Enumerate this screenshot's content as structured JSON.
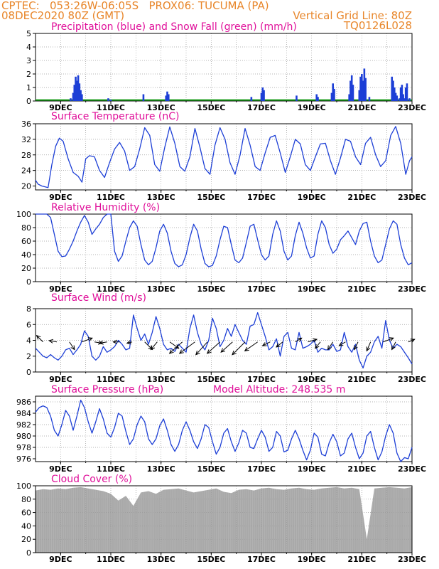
{
  "header": {
    "line1_left": "CPTEC:   053:26W-06:05S   PROX06: TUCUMA (PA)",
    "line2_left": "08DEC2020 80Z (GMT)",
    "line2_right": "Vertical Grid Line: 80Z",
    "line3_right": "TQ0126L028"
  },
  "colors": {
    "header": "#e8862a",
    "title": "#e0109a",
    "series": "#1d3fd6",
    "snow": "#1a9e1a",
    "cloud": "#a9a9a9",
    "grid": "#9a9a9a"
  },
  "x_axis": {
    "start_day": 8,
    "end_day": 23,
    "tick_labels": [
      "9DEC",
      "11DEC",
      "13DEC",
      "15DEC",
      "17DEC",
      "19DEC",
      "21DEC",
      "23DEC"
    ]
  },
  "chart_data": [
    {
      "type": "bar",
      "title": "Precipitation (blue) and Snow Fall (green) (mm/h)",
      "ylim": [
        0,
        5
      ],
      "yticks": [
        "0",
        "1",
        "2",
        "3",
        "4",
        "5"
      ],
      "grid": true,
      "series": [
        {
          "name": "Precipitation",
          "color": "#1d3fd6",
          "points": [
            [
              9.4,
              0.2
            ],
            [
              9.5,
              0.6
            ],
            [
              9.55,
              1.2
            ],
            [
              9.6,
              1.8
            ],
            [
              9.65,
              1.5
            ],
            [
              9.7,
              1.9
            ],
            [
              9.75,
              1.3
            ],
            [
              9.8,
              0.8
            ],
            [
              9.85,
              0.5
            ],
            [
              10.9,
              0.2
            ],
            [
              11.0,
              0.1
            ],
            [
              12.3,
              0.5
            ],
            [
              13.2,
              0.4
            ],
            [
              13.25,
              0.7
            ],
            [
              13.3,
              0.5
            ],
            [
              16.6,
              0.3
            ],
            [
              17.0,
              0.6
            ],
            [
              17.05,
              1.0
            ],
            [
              17.1,
              0.8
            ],
            [
              18.4,
              0.4
            ],
            [
              19.2,
              0.5
            ],
            [
              19.25,
              0.3
            ],
            [
              19.8,
              0.6
            ],
            [
              19.85,
              1.3
            ],
            [
              19.9,
              0.9
            ],
            [
              20.5,
              0.5
            ],
            [
              20.55,
              1.5
            ],
            [
              20.6,
              1.9
            ],
            [
              20.65,
              1.2
            ],
            [
              20.9,
              0.8
            ],
            [
              20.95,
              1.8
            ],
            [
              21.0,
              2.0
            ],
            [
              21.05,
              1.5
            ],
            [
              21.1,
              2.4
            ],
            [
              21.15,
              1.7
            ],
            [
              21.3,
              0.3
            ],
            [
              22.2,
              1.8
            ],
            [
              22.25,
              1.5
            ],
            [
              22.3,
              1.0
            ],
            [
              22.35,
              0.6
            ],
            [
              22.4,
              0.4
            ],
            [
              22.5,
              0.2
            ],
            [
              22.55,
              1.0
            ],
            [
              22.6,
              1.2
            ],
            [
              22.65,
              0.5
            ],
            [
              22.7,
              0.2
            ],
            [
              22.75,
              1.0
            ],
            [
              22.8,
              1.3
            ],
            [
              22.9,
              0.2
            ]
          ]
        },
        {
          "name": "Snow Fall",
          "color": "#1a9e1a",
          "values": [
            0.02
          ]
        }
      ]
    },
    {
      "type": "line",
      "title": "Surface Temperature (nC)",
      "ylim": [
        19,
        36
      ],
      "yticks": [
        "20",
        "24",
        "28",
        "32",
        "36"
      ],
      "grid": true,
      "x": [
        8.0,
        8.1,
        8.25,
        8.5,
        8.65,
        8.8,
        8.95,
        9.1,
        9.3,
        9.5,
        9.7,
        9.85,
        10.0,
        10.15,
        10.35,
        10.55,
        10.75,
        10.95,
        11.15,
        11.35,
        11.55,
        11.75,
        11.95,
        12.15,
        12.35,
        12.55,
        12.75,
        12.95,
        13.15,
        13.35,
        13.55,
        13.75,
        13.95,
        14.15,
        14.35,
        14.55,
        14.75,
        14.95,
        15.15,
        15.35,
        15.55,
        15.75,
        15.95,
        16.15,
        16.35,
        16.55,
        16.75,
        16.95,
        17.15,
        17.35,
        17.55,
        17.75,
        17.95,
        18.15,
        18.35,
        18.55,
        18.75,
        18.95,
        19.15,
        19.35,
        19.55,
        19.75,
        19.95,
        20.15,
        20.35,
        20.55,
        20.75,
        20.95,
        21.15,
        21.35,
        21.55,
        21.75,
        21.95,
        22.15,
        22.35,
        22.55,
        22.75,
        22.9,
        23.0
      ],
      "values": [
        21.5,
        20.5,
        20.0,
        19.6,
        25.5,
        30.2,
        32.3,
        31.5,
        27.0,
        23.5,
        22.5,
        21.0,
        27.0,
        27.8,
        27.5,
        24.0,
        22.2,
        26.0,
        29.5,
        31.2,
        29.0,
        24.0,
        25.0,
        29.5,
        35.0,
        33.0,
        25.5,
        23.8,
        30.0,
        35.2,
        31.0,
        25.0,
        23.8,
        27.5,
        34.8,
        30.0,
        24.5,
        23.0,
        30.5,
        35.0,
        32.0,
        26.0,
        23.0,
        28.0,
        34.8,
        30.5,
        25.0,
        24.0,
        28.5,
        32.5,
        33.0,
        28.5,
        23.5,
        27.5,
        32.0,
        30.8,
        25.5,
        24.0,
        27.5,
        30.8,
        31.0,
        26.5,
        23.0,
        27.2,
        32.0,
        31.5,
        27.5,
        25.5,
        31.0,
        32.5,
        28.0,
        25.0,
        26.5,
        33.0,
        35.3,
        31.0,
        23.0,
        26.5,
        27.5
      ]
    },
    {
      "type": "line",
      "title": "Relative Humidity (%)",
      "ylim": [
        0,
        100
      ],
      "yticks": [
        "0",
        "20",
        "40",
        "60",
        "80",
        "100"
      ],
      "grid": true,
      "x": [
        8.0,
        8.15,
        8.3,
        8.45,
        8.6,
        8.75,
        8.9,
        9.05,
        9.2,
        9.35,
        9.5,
        9.65,
        9.8,
        9.95,
        10.1,
        10.25,
        10.4,
        10.55,
        10.7,
        10.85,
        11.0,
        11.15,
        11.3,
        11.45,
        11.6,
        11.75,
        11.9,
        12.05,
        12.2,
        12.35,
        12.5,
        12.65,
        12.8,
        12.95,
        13.1,
        13.25,
        13.4,
        13.55,
        13.7,
        13.85,
        14.0,
        14.15,
        14.3,
        14.45,
        14.6,
        14.75,
        14.9,
        15.05,
        15.2,
        15.35,
        15.5,
        15.65,
        15.8,
        15.95,
        16.1,
        16.25,
        16.4,
        16.55,
        16.7,
        16.85,
        17.0,
        17.15,
        17.3,
        17.45,
        17.6,
        17.75,
        17.9,
        18.05,
        18.2,
        18.35,
        18.5,
        18.65,
        18.8,
        18.95,
        19.1,
        19.25,
        19.4,
        19.55,
        19.7,
        19.85,
        20.0,
        20.15,
        20.3,
        20.45,
        20.6,
        20.75,
        20.9,
        21.05,
        21.2,
        21.35,
        21.5,
        21.65,
        21.8,
        21.95,
        22.1,
        22.25,
        22.4,
        22.55,
        22.7,
        22.85,
        23.0
      ],
      "values": [
        100,
        100,
        100,
        100,
        95,
        70,
        45,
        37,
        38,
        48,
        60,
        75,
        88,
        98,
        88,
        70,
        78,
        85,
        95,
        100,
        100,
        45,
        30,
        38,
        60,
        80,
        90,
        82,
        55,
        32,
        25,
        30,
        50,
        75,
        85,
        72,
        45,
        27,
        22,
        25,
        40,
        65,
        85,
        75,
        48,
        27,
        22,
        24,
        38,
        62,
        82,
        80,
        55,
        32,
        28,
        35,
        58,
        82,
        85,
        62,
        40,
        32,
        38,
        70,
        90,
        75,
        45,
        32,
        38,
        68,
        88,
        72,
        50,
        35,
        38,
        70,
        90,
        80,
        55,
        42,
        48,
        62,
        68,
        75,
        65,
        55,
        75,
        86,
        88,
        60,
        38,
        28,
        32,
        55,
        78,
        90,
        85,
        55,
        35,
        25,
        28
      ]
    },
    {
      "type": "line",
      "title": "Surface Wind (m/s)",
      "ylim": [
        0,
        8
      ],
      "yticks": [
        "0",
        "2",
        "4",
        "6",
        "8"
      ],
      "grid": true,
      "x": [
        8.0,
        8.15,
        8.3,
        8.45,
        8.6,
        8.75,
        8.9,
        9.05,
        9.2,
        9.35,
        9.5,
        9.65,
        9.8,
        9.95,
        10.1,
        10.25,
        10.4,
        10.55,
        10.7,
        10.85,
        11.0,
        11.15,
        11.3,
        11.45,
        11.6,
        11.75,
        11.9,
        12.05,
        12.2,
        12.35,
        12.5,
        12.65,
        12.8,
        12.95,
        13.1,
        13.25,
        13.4,
        13.55,
        13.7,
        13.85,
        14.0,
        14.15,
        14.3,
        14.45,
        14.6,
        14.75,
        14.9,
        15.05,
        15.2,
        15.35,
        15.5,
        15.65,
        15.8,
        15.95,
        16.1,
        16.25,
        16.4,
        16.55,
        16.7,
        16.85,
        17.0,
        17.15,
        17.3,
        17.45,
        17.6,
        17.75,
        17.9,
        18.05,
        18.2,
        18.35,
        18.5,
        18.65,
        18.8,
        18.95,
        19.1,
        19.25,
        19.4,
        19.55,
        19.7,
        19.85,
        20.0,
        20.15,
        20.3,
        20.45,
        20.6,
        20.75,
        20.9,
        21.05,
        21.2,
        21.35,
        21.5,
        21.65,
        21.8,
        21.95,
        22.1,
        22.25,
        22.4,
        22.55,
        22.7,
        22.85,
        23.0
      ],
      "values": [
        3.0,
        2.5,
        2.0,
        1.8,
        2.2,
        1.8,
        1.5,
        2.0,
        2.8,
        3.0,
        2.2,
        2.8,
        3.5,
        5.2,
        4.5,
        2.0,
        1.5,
        2.0,
        3.2,
        2.5,
        2.8,
        3.2,
        4.0,
        3.5,
        2.8,
        3.0,
        7.2,
        5.5,
        4.0,
        4.8,
        3.5,
        5.0,
        7.0,
        5.5,
        3.5,
        2.8,
        3.0,
        2.6,
        3.5,
        3.0,
        2.5,
        5.5,
        7.2,
        5.0,
        3.5,
        2.8,
        4.0,
        6.8,
        5.5,
        3.2,
        4.0,
        5.5,
        4.5,
        6.0,
        5.0,
        4.0,
        3.5,
        5.8,
        6.0,
        7.5,
        6.0,
        4.5,
        2.8,
        3.2,
        4.2,
        2.0,
        4.5,
        5.0,
        3.0,
        2.8,
        5.0,
        3.0,
        3.2,
        3.5,
        4.0,
        2.5,
        3.0,
        2.8,
        2.8,
        3.5,
        2.6,
        2.8,
        5.0,
        3.2,
        2.5,
        3.5,
        1.5,
        0.5,
        2.0,
        2.5,
        3.8,
        4.5,
        3.0,
        6.5,
        4.0,
        3.0,
        3.5,
        3.2,
        2.5,
        1.8,
        1.0
      ],
      "vectors": {
        "x": [
          8.3,
          8.85,
          9.35,
          9.85,
          10.35,
          10.85,
          11.35,
          11.85,
          12.35,
          12.85,
          13.35,
          13.85,
          14.35,
          14.85,
          15.35,
          15.85,
          16.35,
          16.85,
          17.35,
          17.85,
          18.35,
          18.85,
          19.35,
          19.85,
          20.35,
          20.85,
          21.35,
          21.85,
          22.35,
          22.85
        ],
        "u": [
          -0.5,
          -0.6,
          0.4,
          0.8,
          0.6,
          -0.6,
          -0.5,
          -0.4,
          0.6,
          -0.5,
          0.7,
          -1.0,
          -1.2,
          -0.9,
          -1.0,
          -0.9,
          -1.0,
          -1.0,
          -0.6,
          -0.5,
          0.5,
          0.7,
          -0.4,
          -0.4,
          -0.5,
          -0.3,
          -0.3,
          0.8,
          -0.3,
          0.5
        ],
        "v": [
          0.5,
          0.1,
          -0.6,
          0.3,
          -0.1,
          -0.1,
          0.0,
          -0.1,
          -0.6,
          -0.6,
          -0.5,
          -0.9,
          -0.9,
          -1.0,
          -0.9,
          -0.8,
          -1.0,
          -0.7,
          -0.3,
          -0.4,
          0.3,
          0.2,
          -0.5,
          -0.6,
          -0.3,
          -0.6,
          -0.7,
          0.3,
          -0.6,
          0.2
        ]
      }
    },
    {
      "type": "line",
      "title": "Surface Pressure (hPa)",
      "subtitle": "Model Altitude: 248.535 m",
      "ylim": [
        975.5,
        987
      ],
      "yticks": [
        "976",
        "978",
        "980",
        "982",
        "984",
        "986"
      ],
      "grid": true,
      "x": [
        8.0,
        8.15,
        8.3,
        8.45,
        8.6,
        8.75,
        8.9,
        9.05,
        9.2,
        9.35,
        9.5,
        9.65,
        9.8,
        9.95,
        10.1,
        10.25,
        10.4,
        10.55,
        10.7,
        10.85,
        11.0,
        11.15,
        11.3,
        11.45,
        11.6,
        11.75,
        11.9,
        12.05,
        12.2,
        12.35,
        12.5,
        12.65,
        12.8,
        12.95,
        13.1,
        13.25,
        13.4,
        13.55,
        13.7,
        13.85,
        14.0,
        14.15,
        14.3,
        14.45,
        14.6,
        14.75,
        14.9,
        15.05,
        15.2,
        15.35,
        15.5,
        15.65,
        15.8,
        15.95,
        16.1,
        16.25,
        16.4,
        16.55,
        16.7,
        16.85,
        17.0,
        17.15,
        17.3,
        17.45,
        17.6,
        17.75,
        17.9,
        18.05,
        18.2,
        18.35,
        18.5,
        18.65,
        18.8,
        18.95,
        19.1,
        19.25,
        19.4,
        19.55,
        19.7,
        19.85,
        20.0,
        20.15,
        20.3,
        20.45,
        20.6,
        20.75,
        20.9,
        21.05,
        21.2,
        21.35,
        21.5,
        21.65,
        21.8,
        21.95,
        22.1,
        22.25,
        22.4,
        22.55,
        22.7,
        22.85,
        23.0
      ],
      "values": [
        984.2,
        985.0,
        985.3,
        985.0,
        983.5,
        981.0,
        980.0,
        982.0,
        984.5,
        983.5,
        981.0,
        983.5,
        986.3,
        985.0,
        982.5,
        980.5,
        982.5,
        984.8,
        983.0,
        980.5,
        979.8,
        981.5,
        984.0,
        983.5,
        980.8,
        978.5,
        979.5,
        982.0,
        983.5,
        982.5,
        979.5,
        978.5,
        979.5,
        981.8,
        983.0,
        981.0,
        978.5,
        977.3,
        978.5,
        981.0,
        982.5,
        981.0,
        979.0,
        977.8,
        979.5,
        982.0,
        981.5,
        979.0,
        976.8,
        978.0,
        980.5,
        981.3,
        979.0,
        977.3,
        978.8,
        981.0,
        980.5,
        978.0,
        977.8,
        979.5,
        981.0,
        979.8,
        977.3,
        978.0,
        980.8,
        980.0,
        977.2,
        977.5,
        979.5,
        981.0,
        979.5,
        977.5,
        975.8,
        977.5,
        980.5,
        979.8,
        976.8,
        976.5,
        978.8,
        980.3,
        979.0,
        976.5,
        977.0,
        979.5,
        980.5,
        978.0,
        976.0,
        977.0,
        980.0,
        980.8,
        978.0,
        975.8,
        977.2,
        980.0,
        982.0,
        980.5,
        977.0,
        975.5,
        976.2,
        976.0,
        978.0
      ]
    },
    {
      "type": "area",
      "title": "Cloud Cover (%)",
      "ylim": [
        0,
        100
      ],
      "yticks": [
        "0",
        "20",
        "40",
        "60",
        "80",
        "100"
      ],
      "grid": true,
      "x": [
        8.0,
        8.3,
        8.6,
        8.9,
        9.2,
        9.5,
        9.8,
        10.1,
        10.4,
        10.7,
        11.0,
        11.3,
        11.6,
        11.9,
        12.2,
        12.5,
        12.8,
        13.1,
        13.4,
        13.7,
        14.0,
        14.3,
        14.6,
        14.9,
        15.2,
        15.5,
        15.8,
        16.1,
        16.4,
        16.7,
        17.0,
        17.3,
        17.6,
        17.9,
        18.2,
        18.5,
        18.8,
        19.1,
        19.4,
        19.7,
        20.0,
        20.3,
        20.6,
        20.9,
        21.2,
        21.5,
        21.8,
        22.1,
        22.4,
        22.7,
        23.0
      ],
      "values": [
        93,
        95,
        94,
        96,
        95,
        97,
        98,
        96,
        94,
        92,
        88,
        78,
        85,
        70,
        90,
        92,
        88,
        94,
        95,
        96,
        93,
        90,
        92,
        94,
        96,
        91,
        89,
        94,
        95,
        93,
        96,
        97,
        95,
        94,
        96,
        97,
        95,
        94,
        96,
        97,
        98,
        96,
        97,
        95,
        20,
        96,
        97,
        98,
        97,
        96,
        98
      ]
    }
  ]
}
